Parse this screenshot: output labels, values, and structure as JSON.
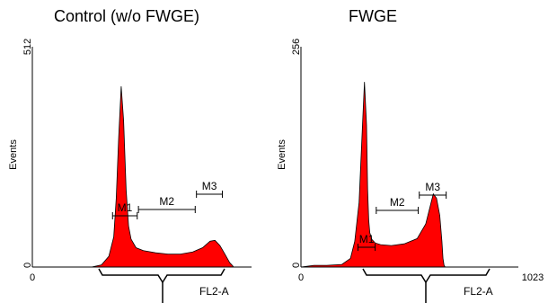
{
  "chart_data": [
    {
      "type": "area",
      "title": "Control (w/o FWGE)",
      "xlabel": "FL2-A",
      "ylabel": "Events",
      "xlim": [
        0,
        1023
      ],
      "ylim": [
        0,
        512
      ],
      "x_tick_labels": [
        "0"
      ],
      "y_tick_labels": [
        "0",
        "512"
      ],
      "fill_color": "#ff0000",
      "x": [
        0,
        180,
        240,
        280,
        310,
        330,
        340,
        350,
        360,
        370,
        380,
        390,
        400,
        420,
        450,
        500,
        550,
        600,
        650,
        690,
        720,
        740,
        760,
        780,
        800,
        812,
        815
      ],
      "y": [
        0,
        0,
        0,
        5,
        25,
        70,
        160,
        300,
        420,
        340,
        180,
        95,
        65,
        45,
        38,
        33,
        30,
        30,
        35,
        45,
        60,
        62,
        50,
        30,
        10,
        3,
        0
      ],
      "gates": [
        {
          "label": "M1",
          "start": 325,
          "end": 425
        },
        {
          "label": "M2",
          "start": 430,
          "end": 660
        },
        {
          "label": "M3",
          "start": 665,
          "end": 770
        }
      ]
    },
    {
      "type": "area",
      "title": "FWGE",
      "xlabel": "FL2-A",
      "ylabel": "Events",
      "xlim": [
        0,
        1023
      ],
      "ylim": [
        0,
        256
      ],
      "x_tick_labels": [
        "0",
        "1023"
      ],
      "y_tick_labels": [
        "0",
        "256"
      ],
      "fill_color": "#ff0000",
      "x": [
        0,
        60,
        120,
        190,
        230,
        250,
        270,
        285,
        295,
        305,
        310,
        315,
        320,
        330,
        345,
        370,
        420,
        480,
        540,
        580,
        600,
        615,
        630,
        645,
        655,
        660,
        665,
        670
      ],
      "y": [
        0,
        2,
        2,
        3,
        10,
        30,
        75,
        160,
        215,
        165,
        90,
        55,
        40,
        32,
        28,
        26,
        25,
        27,
        33,
        50,
        70,
        85,
        80,
        60,
        30,
        10,
        2,
        0
      ],
      "gates": [
        {
          "label": "M1",
          "start": 265,
          "end": 345
        },
        {
          "label": "M2",
          "start": 350,
          "end": 545
        },
        {
          "label": "M3",
          "start": 550,
          "end": 675
        }
      ]
    }
  ]
}
